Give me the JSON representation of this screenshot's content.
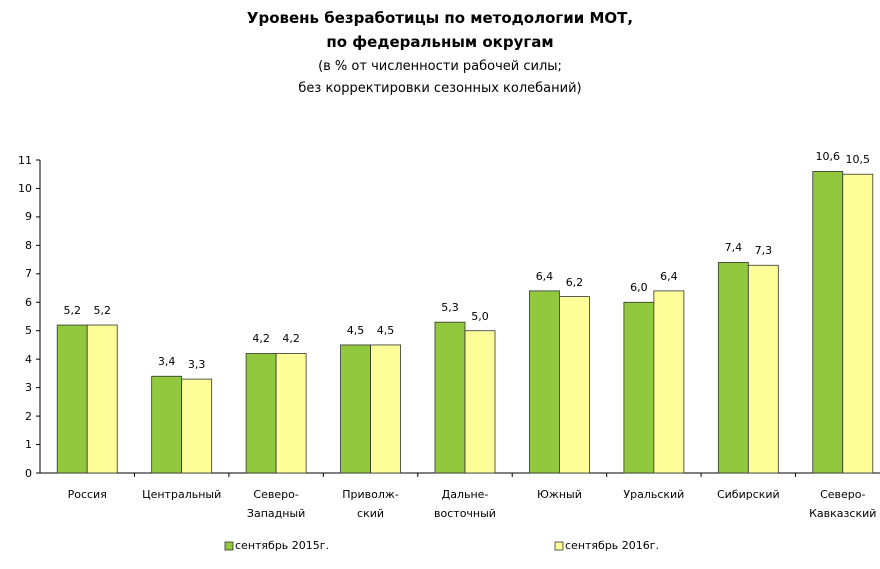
{
  "chart_data": {
    "type": "bar",
    "title": "Уровень безработицы по методологии МОТ,\nпо федеральным округам",
    "subtitle": "(в % от численности рабочей силы;\nбез корректировки сезонных колебаний)",
    "categories": [
      "Россия",
      "Центральный",
      "Северо-\nЗападный",
      "Приволж-\nский",
      "Дальне-\nвосточный",
      "Южный",
      "Уральский",
      "Сибирский",
      "Северо-\nКавказский"
    ],
    "series": [
      {
        "name": "сентябрь 2015г.",
        "color": "#92c83e",
        "values": [
          5.2,
          3.4,
          4.2,
          4.5,
          5.3,
          6.4,
          6.0,
          7.4,
          10.6
        ],
        "value_labels": [
          "5,2",
          "3,4",
          "4,2",
          "4,5",
          "5,3",
          "6,4",
          "6,0",
          "7,4",
          "10,6"
        ]
      },
      {
        "name": "сентябрь 2016г.",
        "color": "#ffff99",
        "values": [
          5.2,
          3.3,
          4.2,
          4.5,
          5.0,
          6.2,
          6.4,
          7.3,
          10.5
        ],
        "value_labels": [
          "5,2",
          "3,3",
          "4,2",
          "4,5",
          "5,0",
          "6,2",
          "6,4",
          "7,3",
          "10,5"
        ]
      }
    ],
    "ylim": [
      0,
      11
    ],
    "yticks": [
      0,
      1,
      2,
      3,
      4,
      5,
      6,
      7,
      8,
      9,
      10,
      11
    ],
    "grid": false,
    "legend": "bottom"
  }
}
